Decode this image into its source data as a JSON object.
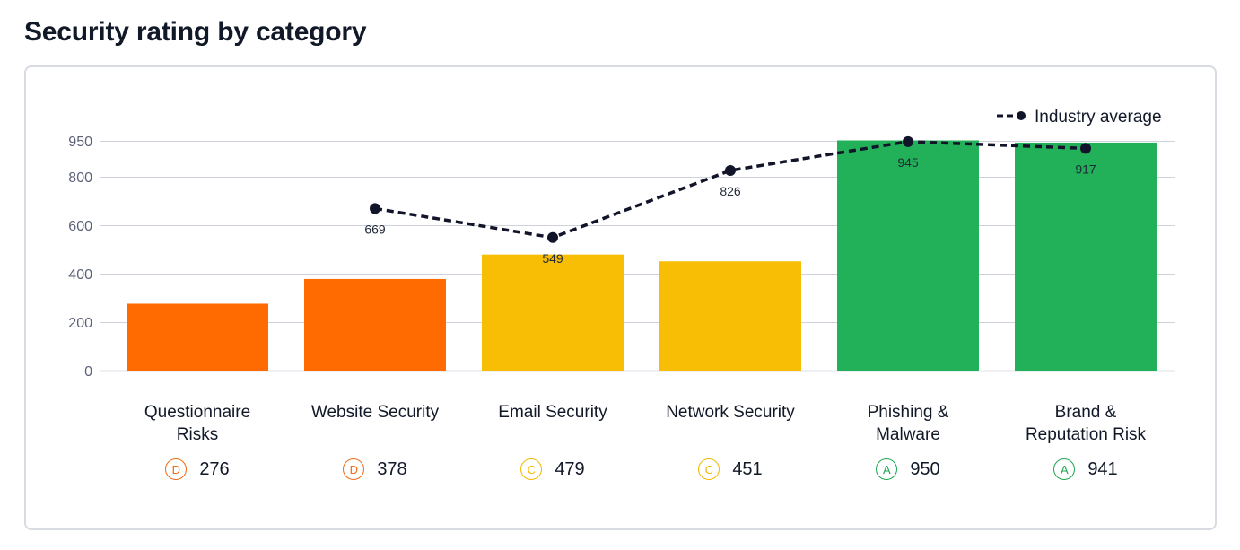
{
  "page": {
    "title": "Security rating by category"
  },
  "legend": {
    "industry_average_label": "Industry average"
  },
  "colors": {
    "D": "#ff6b00",
    "C": "#f8be05",
    "A": "#22b159",
    "industry_line": "#12142a",
    "grid": "#cfd2dc",
    "axis": "#5c6178",
    "badge_text": {
      "D": "#ef6b16",
      "C": "#f2b705",
      "A": "#1ea650"
    }
  },
  "chart_data": {
    "type": "bar",
    "title": "Security rating by category",
    "xlabel": "",
    "ylabel": "",
    "ylim": [
      0,
      950
    ],
    "y_ticks": [
      0,
      200,
      400,
      600,
      800,
      950
    ],
    "grid": true,
    "legend_position": "top-right",
    "categories": [
      "Questionnaire Risks",
      "Website Security",
      "Email Security",
      "Network Security",
      "Phishing & Malware",
      "Brand & Reputation Risk"
    ],
    "category_labels": [
      [
        "Questionnaire",
        "Risks"
      ],
      [
        "Website Security"
      ],
      [
        "Email Security"
      ],
      [
        "Network Security"
      ],
      [
        "Phishing &",
        "Malware"
      ],
      [
        "Brand &",
        "Reputation Risk"
      ]
    ],
    "grades": [
      "D",
      "D",
      "C",
      "C",
      "A",
      "A"
    ],
    "series": [
      {
        "type": "bar",
        "values": [
          276,
          378,
          479,
          451,
          950,
          941
        ]
      },
      {
        "name": "Industry average",
        "type": "line",
        "style": "dashed",
        "values": [
          null,
          669,
          549,
          826,
          945,
          917
        ]
      }
    ]
  }
}
